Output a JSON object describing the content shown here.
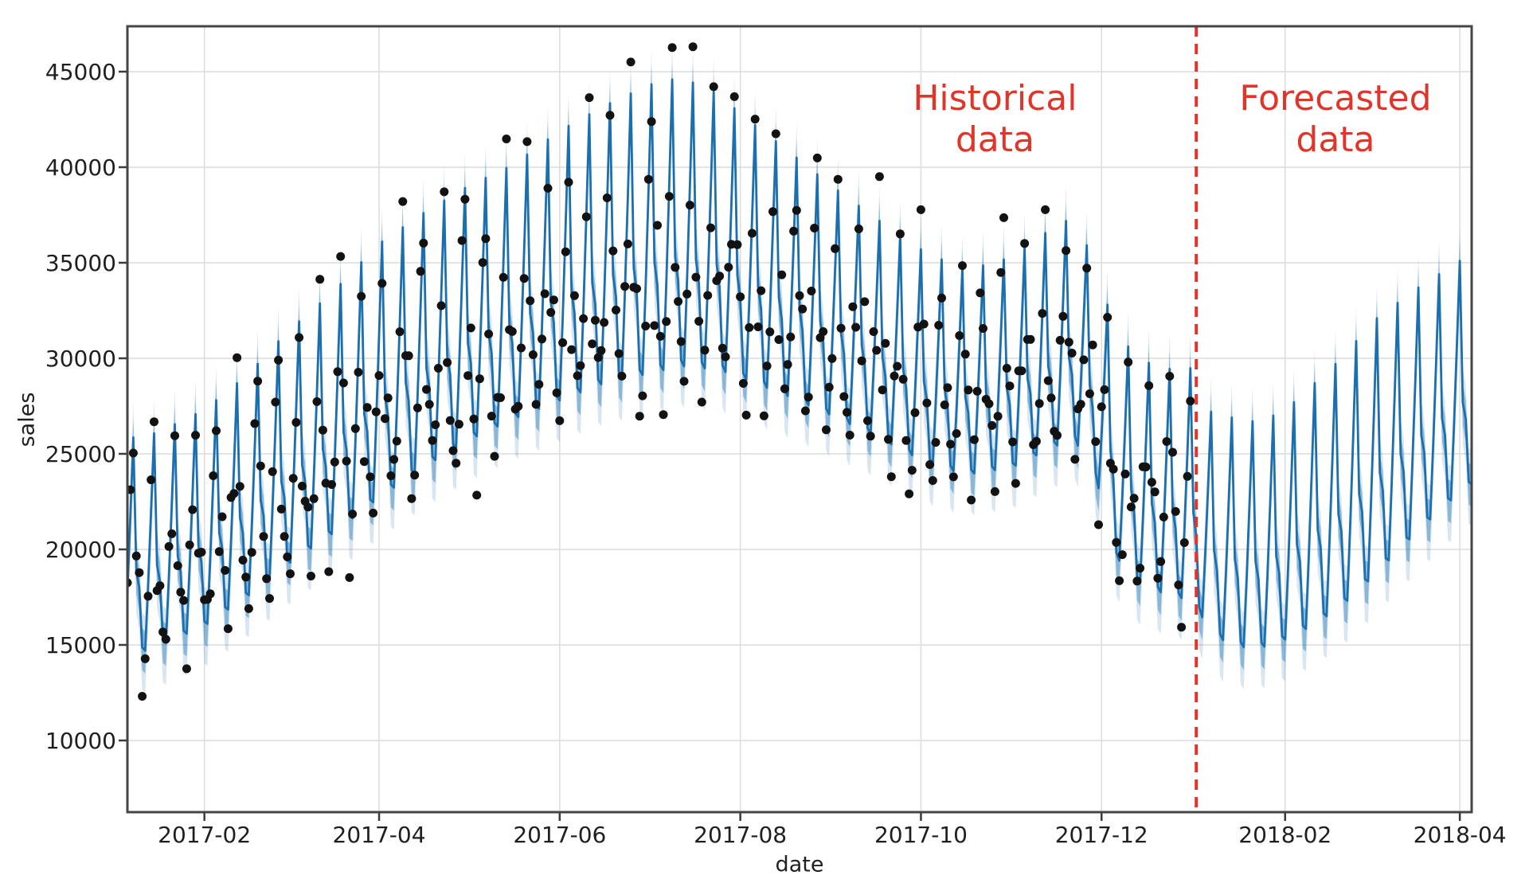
{
  "figure": {
    "background": "#ffffff",
    "spine_color": "#454545",
    "grid_color": "#dcdcdc",
    "tick_color": "#3a3a3a",
    "tick_text_color": "#1f1f1f",
    "accent_red": "#e0352a",
    "line_blue": "#1c6fae",
    "band_blue": "#1f77b4",
    "dot_color": "#121212"
  },
  "chart_data": {
    "type": "line",
    "title": "",
    "xlabel": "date",
    "ylabel": "sales",
    "grid": true,
    "x_epoch": "2017-01-01",
    "x_domain_days": [
      5,
      459
    ],
    "y_domain": [
      6250,
      47375
    ],
    "y_ticks": [
      10000,
      15000,
      20000,
      25000,
      30000,
      35000,
      40000,
      45000
    ],
    "x_ticks": [
      {
        "day": 31,
        "label": "2017-02"
      },
      {
        "day": 90,
        "label": "2017-04"
      },
      {
        "day": 151,
        "label": "2017-06"
      },
      {
        "day": 212,
        "label": "2017-08"
      },
      {
        "day": 273,
        "label": "2017-10"
      },
      {
        "day": 334,
        "label": "2017-12"
      },
      {
        "day": 396,
        "label": "2018-02"
      },
      {
        "day": 455,
        "label": "2018-04"
      }
    ],
    "cutoff": {
      "day": 366,
      "date": "2018-01-01",
      "dash": [
        13,
        9
      ],
      "width": 4
    },
    "annotations": {
      "historical": {
        "line1": "Historical",
        "line2": "data",
        "day": 298,
        "value": 42500
      },
      "forecasted": {
        "line1": "Forecasted",
        "line2": "data",
        "day": 413,
        "value": 42500
      }
    },
    "series": {
      "forecast": {
        "name": "forecast (yhat) with weekly seasonality",
        "weekly_profile": [
          1.0,
          0.38,
          0.3,
          0.02,
          0.0,
          0.3,
          0.64
        ],
        "peak_weekday_offset": 0,
        "envelope_legend": "each entry: [day since 2017-01-01, weekly trough of yhat, weekly peak of yhat]",
        "envelope": [
          [
            5,
            14400,
            25800
          ],
          [
            15,
            14900,
            26100
          ],
          [
            31,
            16000,
            27300
          ],
          [
            46,
            17600,
            29200
          ],
          [
            59,
            19200,
            31400
          ],
          [
            74,
            20800,
            33400
          ],
          [
            90,
            22700,
            36000
          ],
          [
            105,
            24300,
            37600
          ],
          [
            120,
            25700,
            39000
          ],
          [
            135,
            26800,
            40100
          ],
          [
            151,
            27800,
            41900
          ],
          [
            166,
            28700,
            43200
          ],
          [
            181,
            29200,
            44300
          ],
          [
            192,
            29600,
            44700
          ],
          [
            205,
            29400,
            43800
          ],
          [
            212,
            29000,
            42800
          ],
          [
            227,
            28100,
            41000
          ],
          [
            243,
            27000,
            39000
          ],
          [
            258,
            25900,
            37300
          ],
          [
            274,
            24600,
            35600
          ],
          [
            288,
            23900,
            34600
          ],
          [
            304,
            24300,
            35300
          ],
          [
            318,
            25400,
            36900
          ],
          [
            325,
            25700,
            37400
          ],
          [
            332,
            23800,
            34800
          ],
          [
            339,
            19600,
            31300
          ],
          [
            346,
            18300,
            30100
          ],
          [
            353,
            17800,
            29500
          ],
          [
            360,
            17500,
            29400
          ],
          [
            365,
            17300,
            29500
          ],
          [
            371,
            15600,
            27200
          ],
          [
            378,
            15000,
            26900
          ],
          [
            385,
            14800,
            26700
          ],
          [
            392,
            15000,
            27000
          ],
          [
            399,
            15500,
            27700
          ],
          [
            406,
            16100,
            28700
          ],
          [
            413,
            16800,
            29700
          ],
          [
            420,
            17700,
            30900
          ],
          [
            427,
            18800,
            32100
          ],
          [
            434,
            19900,
            32900
          ],
          [
            441,
            21000,
            33700
          ],
          [
            448,
            22000,
            34400
          ],
          [
            455,
            23000,
            35100
          ],
          [
            459,
            23400,
            35400
          ]
        ],
        "ci_inner": {
          "upper": 1000,
          "lower": 1200
        },
        "ci_outer": {
          "upper": 1800,
          "lower": 2200
        }
      },
      "observed": {
        "name": "observed daily sales (black dots)",
        "start_day": 5,
        "end_day": 364,
        "noise_sigma": 1450,
        "noise_clamp": 3300,
        "seed": 11,
        "dot_radius": 5.5
      }
    }
  }
}
